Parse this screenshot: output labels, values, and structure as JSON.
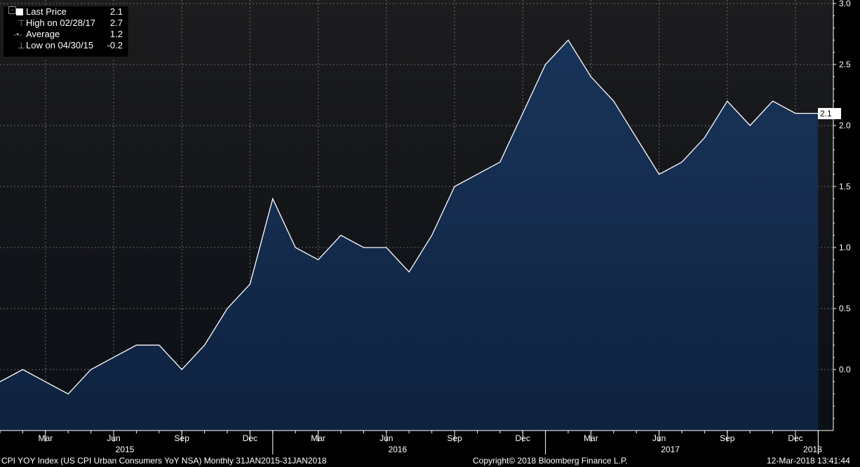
{
  "chart_data": {
    "type": "area",
    "title": "",
    "xlabel": "",
    "ylabel": "",
    "ylim": [
      -0.5,
      3.0
    ],
    "y_ticks": [
      "0.0",
      "0.5",
      "1.0",
      "1.5",
      "2.0",
      "2.5",
      "3.0"
    ],
    "x": [
      "2015-01",
      "2015-02",
      "2015-03",
      "2015-04",
      "2015-05",
      "2015-06",
      "2015-07",
      "2015-08",
      "2015-09",
      "2015-10",
      "2015-11",
      "2015-12",
      "2016-01",
      "2016-02",
      "2016-03",
      "2016-04",
      "2016-05",
      "2016-06",
      "2016-07",
      "2016-08",
      "2016-09",
      "2016-10",
      "2016-11",
      "2016-12",
      "2017-01",
      "2017-02",
      "2017-03",
      "2017-04",
      "2017-05",
      "2017-06",
      "2017-07",
      "2017-08",
      "2017-09",
      "2017-10",
      "2017-11",
      "2017-12",
      "2018-01"
    ],
    "values": [
      -0.1,
      0.0,
      -0.1,
      -0.2,
      0.0,
      0.1,
      0.2,
      0.2,
      0.0,
      0.2,
      0.5,
      0.7,
      1.4,
      1.0,
      0.9,
      1.1,
      1.0,
      1.0,
      0.8,
      1.1,
      1.5,
      1.6,
      1.7,
      2.1,
      2.5,
      2.7,
      2.4,
      2.2,
      1.9,
      1.6,
      1.7,
      1.9,
      2.2,
      2.0,
      2.2,
      2.1,
      2.1
    ],
    "month_ticks": [
      "Mar",
      "Jun",
      "Sep",
      "Dec",
      "Mar",
      "Jun",
      "Sep",
      "Dec",
      "Mar",
      "Jun",
      "Sep",
      "Dec"
    ],
    "year_labels": [
      "2015",
      "2016",
      "2017",
      "2018"
    ],
    "grid": true,
    "last_value_label": "2.1",
    "colors": {
      "background": "#000000",
      "plot_bg_top": "#161a22",
      "area_fill": "#13294a",
      "line": "#ffffff",
      "grid": "#6a6a6a"
    }
  },
  "legend": {
    "rows": [
      {
        "label": "Last Price",
        "value": "2.1"
      },
      {
        "label": "High on 02/28/17",
        "value": "2.7"
      },
      {
        "label": "Average",
        "value": "1.2"
      },
      {
        "label": "Low on 04/30/15",
        "value": "-0.2"
      }
    ]
  },
  "footer": {
    "security": "CPI YOY Index (US CPI Urban Consumers YoY NSA)  Monthly 31JAN2015-31JAN2018",
    "copyright": "Copyright© 2018 Bloomberg Finance L.P.",
    "timestamp": "12-Mar-2018 13:41:44"
  }
}
